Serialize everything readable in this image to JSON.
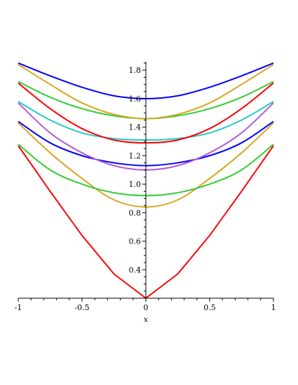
{
  "chart_data": {
    "type": "line",
    "xlabel": "x",
    "ylabel": "",
    "xlim": [
      -1,
      1
    ],
    "ylim": [
      0.2,
      1.86
    ],
    "x_ticks": [
      -1,
      -0.5,
      0,
      0.5,
      1
    ],
    "x_tick_labels": [
      "-1",
      "-0.5",
      "0",
      "0.5",
      "1"
    ],
    "y_ticks": [
      0.4,
      0.6,
      0.8,
      1.0,
      1.2,
      1.4,
      1.6,
      1.8
    ],
    "y_tick_labels": [
      "0.4",
      "0.6",
      "0.8",
      "1.0",
      "1.2",
      "1.4",
      "1.6",
      "1.8"
    ],
    "grid": false,
    "series": [
      {
        "color": "#ff0000",
        "x": [
          -1,
          -0.75,
          -0.5,
          -0.25,
          0,
          0.25,
          0.5,
          0.75,
          1
        ],
        "y": [
          1.27,
          0.95,
          0.64,
          0.37,
          0.2,
          0.37,
          0.64,
          0.95,
          1.27
        ]
      },
      {
        "color": "#daa520",
        "x": [
          -1,
          -0.75,
          -0.5,
          -0.25,
          0,
          0.25,
          0.5,
          0.75,
          1
        ],
        "y": [
          1.43,
          1.22,
          1.04,
          0.89,
          0.84,
          0.89,
          1.04,
          1.22,
          1.43
        ]
      },
      {
        "color": "#32cd32",
        "x": [
          -1,
          -0.75,
          -0.5,
          -0.25,
          0,
          0.25,
          0.5,
          0.75,
          1
        ],
        "y": [
          1.28,
          1.1,
          1.0,
          0.94,
          0.92,
          0.94,
          1.0,
          1.1,
          1.28
        ]
      },
      {
        "color": "#0000ff",
        "x": [
          -1,
          -0.75,
          -0.5,
          -0.25,
          0,
          0.25,
          0.5,
          0.75,
          1
        ],
        "y": [
          1.44,
          1.29,
          1.2,
          1.15,
          1.13,
          1.15,
          1.2,
          1.29,
          1.44
        ]
      },
      {
        "color": "#b55ad6",
        "x": [
          -1,
          -0.75,
          -0.5,
          -0.25,
          0,
          0.25,
          0.5,
          0.75,
          1
        ],
        "y": [
          1.57,
          1.36,
          1.22,
          1.13,
          1.1,
          1.13,
          1.22,
          1.36,
          1.57
        ]
      },
      {
        "color": "#20c8c8",
        "x": [
          -1,
          -0.75,
          -0.5,
          -0.25,
          0,
          0.25,
          0.5,
          0.75,
          1
        ],
        "y": [
          1.58,
          1.45,
          1.36,
          1.32,
          1.31,
          1.32,
          1.36,
          1.45,
          1.58
        ]
      },
      {
        "color": "#ff0000",
        "x": [
          -1,
          -0.75,
          -0.5,
          -0.25,
          0,
          0.25,
          0.5,
          0.75,
          1
        ],
        "y": [
          1.71,
          1.53,
          1.39,
          1.31,
          1.29,
          1.31,
          1.39,
          1.53,
          1.71
        ]
      },
      {
        "color": "#32cd32",
        "x": [
          -1,
          -0.75,
          -0.5,
          -0.25,
          0,
          0.25,
          0.5,
          0.75,
          1
        ],
        "y": [
          1.72,
          1.61,
          1.53,
          1.48,
          1.46,
          1.48,
          1.53,
          1.61,
          1.72
        ]
      },
      {
        "color": "#daa520",
        "x": [
          -1,
          -0.75,
          -0.5,
          -0.25,
          0,
          0.25,
          0.5,
          0.75,
          1
        ],
        "y": [
          1.84,
          1.7,
          1.57,
          1.49,
          1.46,
          1.49,
          1.57,
          1.7,
          1.84
        ]
      },
      {
        "color": "#0000ff",
        "x": [
          -1,
          -0.75,
          -0.5,
          -0.25,
          0,
          0.25,
          0.5,
          0.75,
          1
        ],
        "y": [
          1.85,
          1.76,
          1.68,
          1.62,
          1.6,
          1.62,
          1.68,
          1.76,
          1.85
        ]
      }
    ]
  }
}
